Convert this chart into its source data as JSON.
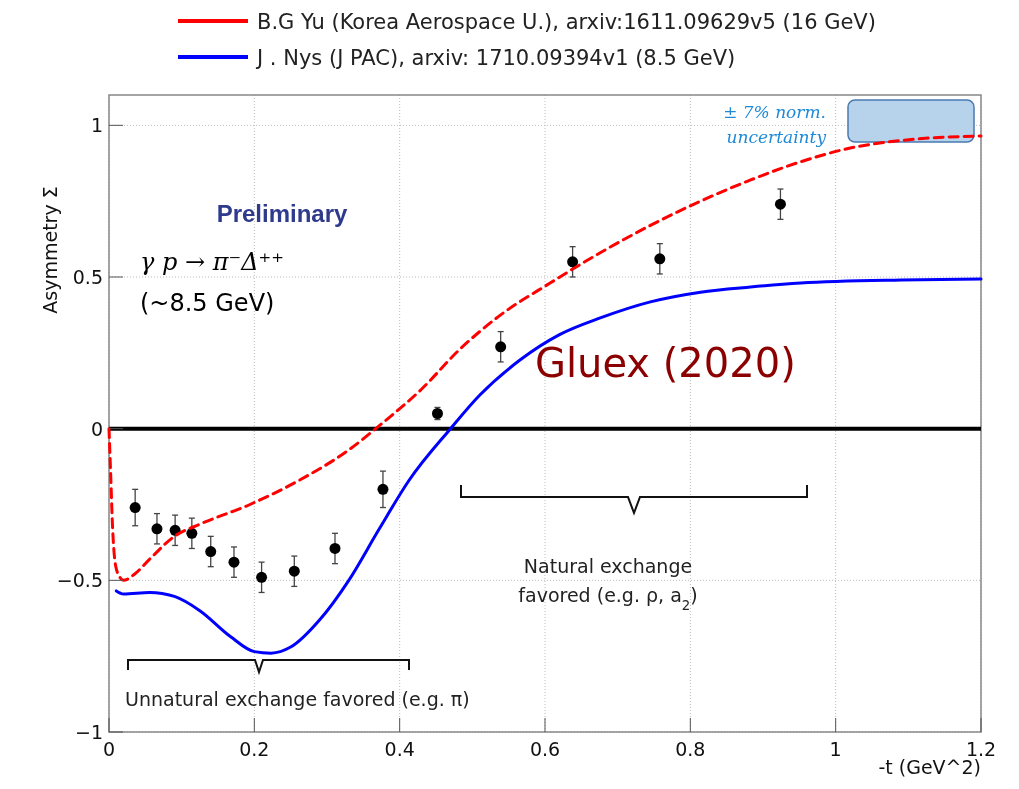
{
  "chart_data": {
    "type": "scatter",
    "xlabel": "-t (GeV^2)",
    "ylabel": "Asymmetry Σ",
    "xlim": [
      0,
      1.2
    ],
    "ylim": [
      -1,
      1.1
    ],
    "xticks": [
      0,
      0.2,
      0.4,
      0.6,
      0.8,
      1,
      1.2
    ],
    "yticks": [
      {
        "value": -1,
        "label": "−1"
      },
      {
        "value": -0.5,
        "label": "−0.5"
      },
      0,
      0.5,
      1
    ],
    "grid": true,
    "legend": "top",
    "marker": "circle",
    "ref_lines": [
      {
        "axis": "y",
        "value": 0,
        "color": "#000000"
      }
    ],
    "series": [
      {
        "color": "#000000",
        "x": [
          0.036,
          0.066,
          0.091,
          0.114,
          0.14,
          0.172,
          0.21,
          0.255,
          0.311,
          0.377,
          0.452,
          0.539,
          0.638,
          0.758,
          0.924
        ],
        "values": [
          -0.26,
          -0.33,
          -0.335,
          -0.345,
          -0.405,
          -0.44,
          -0.49,
          -0.47,
          -0.395,
          -0.2,
          0.05,
          0.27,
          0.55,
          0.56,
          0.74
        ],
        "errors": [
          0.06,
          0.05,
          0.05,
          0.05,
          0.05,
          0.05,
          0.05,
          0.05,
          0.05,
          0.06,
          0.02,
          0.05,
          0.05,
          0.05,
          0.05
        ]
      },
      {
        "type": "line",
        "name": "B.G Yu (Korea Aerospace U.), arxiv:1611.09629v5 (16 GeV)",
        "color": "#ff0000",
        "line_style": "dashed",
        "marker": "none",
        "x": [
          0,
          0.002,
          0.005,
          0.009,
          0.015,
          0.02,
          0.035,
          0.056,
          0.09,
          0.125,
          0.194,
          0.262,
          0.33,
          0.372,
          0.43,
          0.482,
          0.539,
          0.607,
          0.676,
          0.745,
          0.814,
          0.883,
          0.952,
          1.02,
          1.09,
          1.2
        ],
        "values": [
          0,
          -0.13,
          -0.33,
          -0.45,
          -0.49,
          -0.5,
          -0.48,
          -0.43,
          -0.355,
          -0.315,
          -0.25,
          -0.17,
          -0.07,
          0.01,
          0.13,
          0.26,
          0.375,
          0.48,
          0.58,
          0.67,
          0.75,
          0.82,
          0.88,
          0.925,
          0.95,
          0.965
        ]
      },
      {
        "type": "line",
        "name": "J . Nys (J PAC), arxiv: 1710.09394v1 (8.5 GeV)",
        "color": "#0000ff",
        "line_style": "solid",
        "marker": "none",
        "x": [
          0.01,
          0.02,
          0.056,
          0.09,
          0.125,
          0.167,
          0.2,
          0.223,
          0.25,
          0.29,
          0.33,
          0.372,
          0.413,
          0.47,
          0.51,
          0.566,
          0.62,
          0.676,
          0.745,
          0.814,
          0.883,
          0.952,
          1.09,
          1.2
        ],
        "values": [
          -0.535,
          -0.545,
          -0.54,
          -0.553,
          -0.6,
          -0.685,
          -0.735,
          -0.74,
          -0.72,
          -0.63,
          -0.5,
          -0.33,
          -0.17,
          0,
          0.11,
          0.227,
          0.31,
          0.365,
          0.418,
          0.45,
          0.467,
          0.48,
          0.49,
          0.493
        ]
      }
    ],
    "annotations": [
      "Preliminary",
      "γ p → π⁻Δ⁺⁺",
      "(~8.5 GeV)",
      "± 7% norm. uncertainty",
      "Gluex (2020)",
      "Natural exchange favored (e.g. ρ, a$_{2}$)",
      "Unnatural exchange favored (e.g. π)"
    ]
  }
}
